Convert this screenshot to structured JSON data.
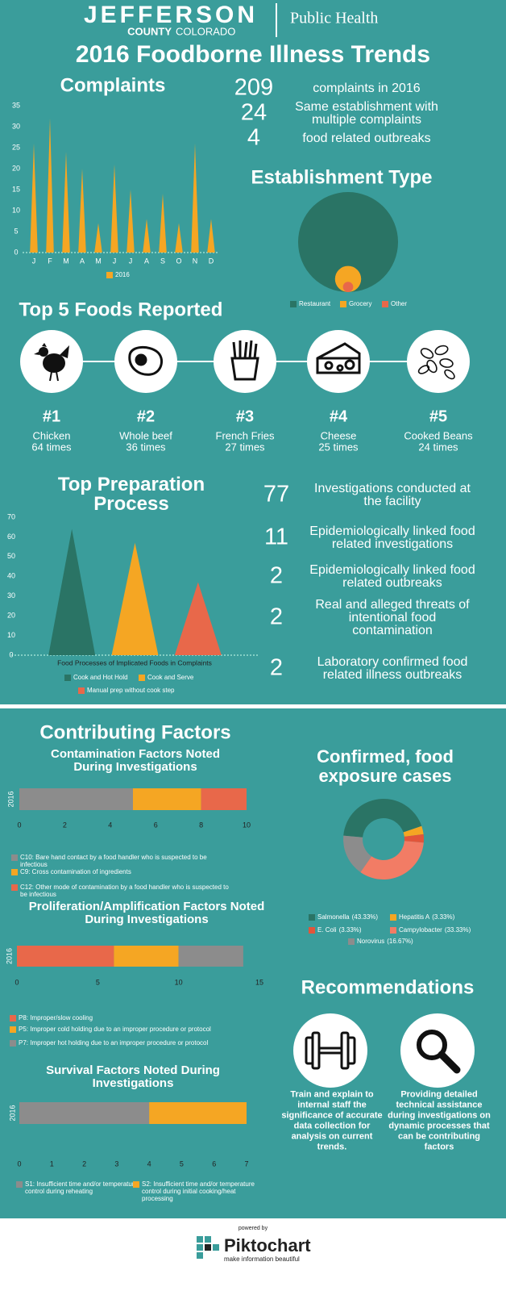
{
  "header": {
    "org": "JEFFERSON",
    "county": "COUNTY",
    "state": "COLORADO",
    "department": "Public Health",
    "title": "2016 Foodborne Illness Trends"
  },
  "stats": [
    {
      "value": 209,
      "label": "complaints in 2016"
    },
    {
      "value": 24,
      "label": "Same establishment with multiple complaints"
    },
    {
      "value": 4,
      "label": "food related outbreaks"
    }
  ],
  "top_foods": {
    "title": "Top 5 Foods Reported",
    "items": [
      {
        "rank": "#1",
        "name": "Chicken",
        "count": "64 times"
      },
      {
        "rank": "#2",
        "name": "Whole beef",
        "count": "36 times"
      },
      {
        "rank": "#3",
        "name": "French Fries",
        "count": "27 times"
      },
      {
        "rank": "#4",
        "name": "Cheese",
        "count": "25 times"
      },
      {
        "rank": "#5",
        "name": "Cooked Beans",
        "count": "24 times"
      }
    ]
  },
  "investigations": [
    {
      "value": 77,
      "label": "Investigations conducted at the facility"
    },
    {
      "value": 11,
      "label": "Epidemiologically linked food related investigations"
    },
    {
      "value": 2,
      "label": "Epidemiologically linked food related outbreaks"
    },
    {
      "value": 2,
      "label": "Real and alleged threats of intentional food contamination"
    },
    {
      "value": 2,
      "label": "Laboratory confirmed food related illness outbreaks"
    }
  ],
  "contributing_factors": {
    "title": "Contributing Factors"
  },
  "recommendations": {
    "title": "Recommendations",
    "items": [
      "Train and explain to internal staff the significance of accurate data collection for analysis on current trends.",
      "Providing detailed technical assistance during investigations on dynamic processes that can be contributing factors"
    ]
  },
  "footer": {
    "powered_by": "powered by",
    "brand": "Piktochart",
    "tagline": "make information beautiful"
  },
  "chart_data": [
    {
      "type": "triangle",
      "title": "Complaints",
      "categories": [
        "J",
        "F",
        "M",
        "A",
        "M",
        "J",
        "J",
        "A",
        "S",
        "O",
        "N",
        "D"
      ],
      "series": [
        {
          "name": "2016",
          "color": "#f5a623",
          "values": [
            26,
            32,
            24,
            20,
            7,
            21,
            15,
            8,
            14,
            7,
            26,
            8
          ]
        }
      ],
      "ylim": [
        0,
        35
      ],
      "yticks": [
        0,
        5,
        10,
        15,
        20,
        25,
        30,
        35
      ]
    },
    {
      "type": "circles",
      "title": "Establishment Type",
      "categories": [
        "Restaurant",
        "Grocery",
        "Other"
      ],
      "values": [
        190,
        13,
        2
      ],
      "colors": [
        "#2a7465",
        "#f5a623",
        "#e8684a"
      ]
    },
    {
      "type": "triangle",
      "title": "Top Preparation Process",
      "xlabel": "Food Processes of Implicated Foods in Complaints",
      "series": [
        {
          "name": "Cook and Hot Hold",
          "color": "#2a7465",
          "values": [
            64
          ]
        },
        {
          "name": "Cook and Serve",
          "color": "#f5a623",
          "values": [
            57
          ]
        },
        {
          "name": "Manual prep without cook step",
          "color": "#e8684a",
          "values": [
            37
          ]
        }
      ],
      "ylim": [
        0,
        70
      ],
      "yticks": [
        0,
        10,
        20,
        30,
        40,
        50,
        60,
        70
      ]
    },
    {
      "type": "stackedbar",
      "title": "Contamination Factors Noted During Investigations",
      "categories": [
        "2016"
      ],
      "series": [
        {
          "name": "C10: Bare hand contact by a food handler who is suspected to be infectious",
          "color": "#8c8c8c",
          "values": [
            5
          ]
        },
        {
          "name": "C9: Cross contamination of ingredients",
          "color": "#f5a623",
          "values": [
            3
          ]
        },
        {
          "name": "C12: Other mode of contamination by a food handler who is suspected to be infectious",
          "color": "#e8684a",
          "values": [
            2
          ]
        }
      ],
      "xlim": [
        0,
        10
      ],
      "xticks": [
        0,
        2,
        4,
        6,
        8,
        10
      ]
    },
    {
      "type": "stackedbar",
      "title": "Proliferation/Amplification Factors Noted During Investigations",
      "categories": [
        "2016"
      ],
      "series": [
        {
          "name": "P8: Improper/slow cooling",
          "color": "#e8684a",
          "values": [
            6
          ]
        },
        {
          "name": "P5: Improper cold holding due to an improper procedure or protocol",
          "color": "#f5a623",
          "values": [
            4
          ]
        },
        {
          "name": "P7: Improper hot holding due to an improper procedure or protocol",
          "color": "#8c8c8c",
          "values": [
            4
          ]
        }
      ],
      "xlim": [
        0,
        15
      ],
      "xticks": [
        0,
        5,
        10,
        15
      ]
    },
    {
      "type": "stackedbar",
      "title": "Survival Factors Noted During Investigations",
      "categories": [
        "2016"
      ],
      "series": [
        {
          "name": "S1: Insufficient time and/or temperature control during reheating",
          "color": "#8c8c8c",
          "values": [
            4
          ]
        },
        {
          "name": "S2: Insufficient time and/or temperature control during initial cooking/heat processing",
          "color": "#f5a623",
          "values": [
            3
          ]
        }
      ],
      "xlim": [
        0,
        7
      ],
      "xticks": [
        0,
        1,
        2,
        3,
        4,
        5,
        6,
        7
      ]
    },
    {
      "type": "donut",
      "title": "Confirmed, food exposure cases",
      "categories": [
        "Salmonella",
        "Hepatitis A",
        "E. Coli",
        "Campylobacter",
        "Norovirus"
      ],
      "values": [
        43.33,
        3.33,
        3.33,
        33.33,
        16.67
      ],
      "value_labels": [
        "(43.33%)",
        "(3.33%)",
        "(3.33%)",
        "(33.33%)",
        "(16.67%)"
      ],
      "colors": [
        "#2a7465",
        "#f5a623",
        "#e2553a",
        "#f27c65",
        "#8c8c8c"
      ]
    }
  ]
}
